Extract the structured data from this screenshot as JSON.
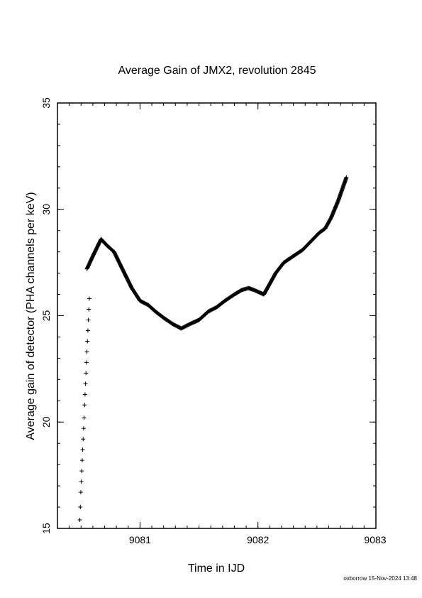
{
  "chart_data": {
    "type": "scatter",
    "title": "Average Gain of JMX2, revolution 2845",
    "xlabel": "Time in IJD",
    "ylabel": "Average gain of detector (PHA channels per keV)",
    "xlim": [
      9080.3,
      9083.0
    ],
    "ylim": [
      15,
      35
    ],
    "xticks": [
      9081,
      9082,
      9083
    ],
    "yticks": [
      15,
      20,
      25,
      30,
      35
    ],
    "x_minor_step": 0.1,
    "y_minor_step": 1,
    "grid": false,
    "legend": "none",
    "marker": "+",
    "sparse_points": {
      "x": [
        9080.49,
        9080.494,
        9080.498,
        9080.502,
        9080.506,
        9080.51,
        9080.514,
        9080.518,
        9080.522,
        9080.526,
        9080.53,
        9080.534,
        9080.538,
        9080.542,
        9080.546
      ],
      "y": [
        15.4,
        16.0,
        16.7,
        17.2,
        17.7,
        18.2,
        18.7,
        19.2,
        19.7,
        20.2,
        20.8,
        21.3,
        21.8,
        22.3,
        22.8
      ]
    },
    "sparse_points_b": {
      "x": [
        9080.55,
        9080.554,
        9080.558,
        9080.562,
        9080.566,
        9080.57
      ],
      "y": [
        23.3,
        23.8,
        24.3,
        24.8,
        25.3,
        25.8
      ]
    },
    "dense_curve": {
      "x": [
        9080.55,
        9080.6,
        9080.67,
        9080.72,
        9080.78,
        9080.85,
        9080.93,
        9081.0,
        9081.07,
        9081.13,
        9081.2,
        9081.28,
        9081.35,
        9081.42,
        9081.5,
        9081.58,
        9081.65,
        9081.72,
        9081.8,
        9081.86,
        9081.92,
        9081.97,
        9082.05,
        9082.1,
        9082.15,
        9082.22,
        9082.3,
        9082.38,
        9082.45,
        9082.52,
        9082.57,
        9082.62,
        9082.68,
        9082.75
      ],
      "y": [
        27.2,
        27.8,
        28.6,
        28.3,
        28.0,
        27.2,
        26.3,
        25.7,
        25.5,
        25.2,
        24.9,
        24.6,
        24.4,
        24.6,
        24.8,
        25.2,
        25.4,
        25.7,
        26.0,
        26.2,
        26.3,
        26.2,
        26.0,
        26.5,
        27.0,
        27.5,
        27.8,
        28.1,
        28.5,
        28.9,
        29.1,
        29.6,
        30.4,
        31.5
      ]
    }
  },
  "footer": {
    "credit": "oxborrow 15-Nov-2024 13:48"
  }
}
